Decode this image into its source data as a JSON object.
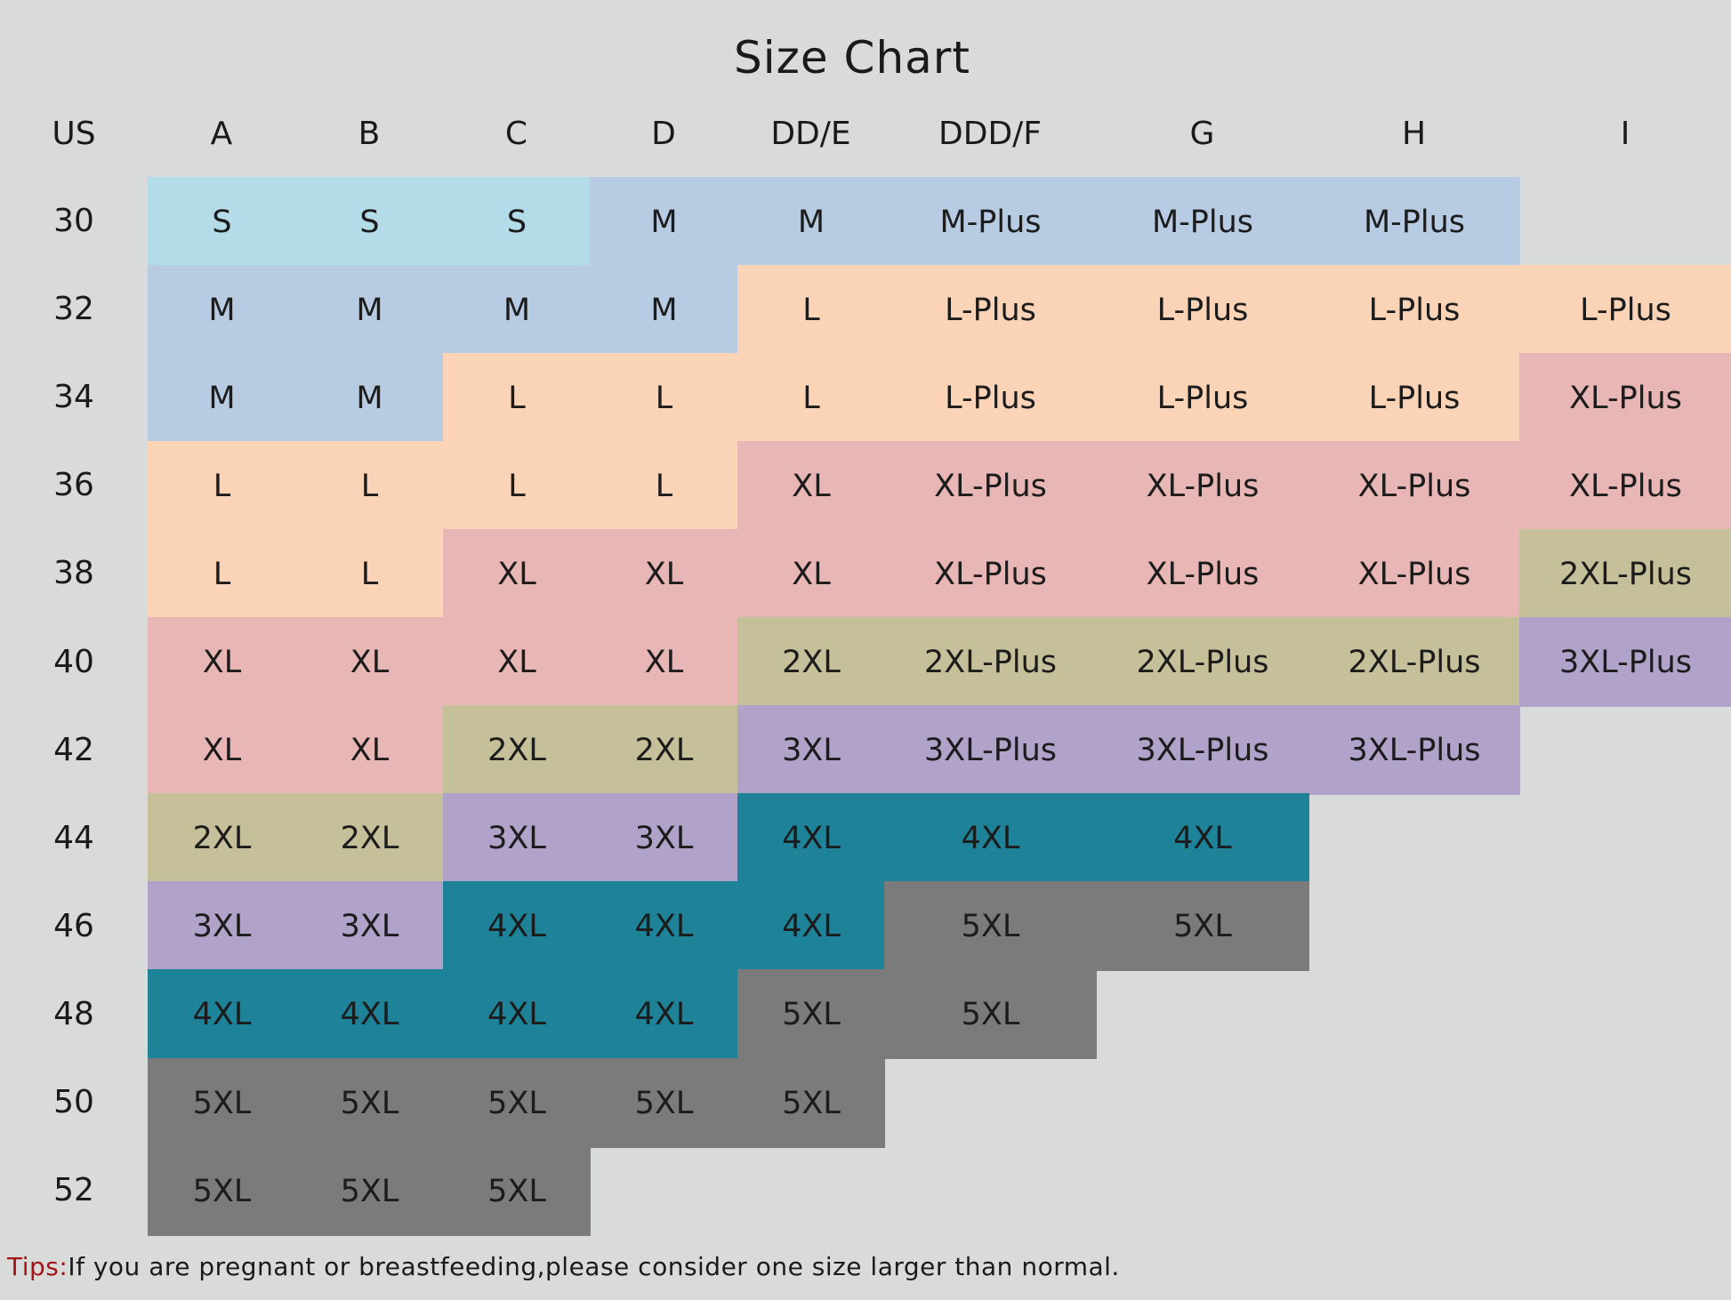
{
  "title": "Size Chart",
  "columns": [
    "US",
    "A",
    "B",
    "C",
    "D",
    "DD/E",
    "DDD/F",
    "G",
    "H",
    "I"
  ],
  "rows": [
    {
      "band": "30",
      "sizes": [
        "S",
        "S",
        "S",
        "M",
        "M",
        "M-Plus",
        "M-Plus",
        "M-Plus",
        null
      ]
    },
    {
      "band": "32",
      "sizes": [
        "M",
        "M",
        "M",
        "M",
        "L",
        "L-Plus",
        "L-Plus",
        "L-Plus",
        "L-Plus"
      ]
    },
    {
      "band": "34",
      "sizes": [
        "M",
        "M",
        "L",
        "L",
        "L",
        "L-Plus",
        "L-Plus",
        "L-Plus",
        "XL-Plus"
      ]
    },
    {
      "band": "36",
      "sizes": [
        "L",
        "L",
        "L",
        "L",
        "XL",
        "XL-Plus",
        "XL-Plus",
        "XL-Plus",
        "XL-Plus"
      ]
    },
    {
      "band": "38",
      "sizes": [
        "L",
        "L",
        "XL",
        "XL",
        "XL",
        "XL-Plus",
        "XL-Plus",
        "XL-Plus",
        "2XL-Plus"
      ]
    },
    {
      "band": "40",
      "sizes": [
        "XL",
        "XL",
        "XL",
        "XL",
        "2XL",
        "2XL-Plus",
        "2XL-Plus",
        "2XL-Plus",
        "3XL-Plus"
      ]
    },
    {
      "band": "42",
      "sizes": [
        "XL",
        "XL",
        "2XL",
        "2XL",
        "3XL",
        "3XL-Plus",
        "3XL-Plus",
        "3XL-Plus",
        null
      ]
    },
    {
      "band": "44",
      "sizes": [
        "2XL",
        "2XL",
        "3XL",
        "3XL",
        "4XL",
        "4XL",
        "4XL",
        null,
        null
      ]
    },
    {
      "band": "46",
      "sizes": [
        "3XL",
        "3XL",
        "4XL",
        "4XL",
        "4XL",
        "5XL",
        "5XL",
        null,
        null
      ]
    },
    {
      "band": "48",
      "sizes": [
        "4XL",
        "4XL",
        "4XL",
        "4XL",
        "5XL",
        "5XL",
        null,
        null,
        null
      ]
    },
    {
      "band": "50",
      "sizes": [
        "5XL",
        "5XL",
        "5XL",
        "5XL",
        "5XL",
        null,
        null,
        null,
        null
      ]
    },
    {
      "band": "52",
      "sizes": [
        "5XL",
        "5XL",
        "5XL",
        null,
        null,
        null,
        null,
        null,
        null
      ]
    }
  ],
  "size_colors": {
    "S": "#b3dbe8",
    "M": "#b7cce3",
    "L": "#fbd3b6",
    "XL": "#e8b7b5",
    "2XL": "#c6c09a",
    "3XL": "#b1a2ca",
    "4XL": "#1e8299",
    "5XL": "#7b7b7b"
  },
  "background_color": "#d9dbda",
  "tips": {
    "label": "Tips:",
    "text": "If you are pregnant or breastfeeding,please consider one size larger than normal.",
    "label_color": "#a31515"
  }
}
